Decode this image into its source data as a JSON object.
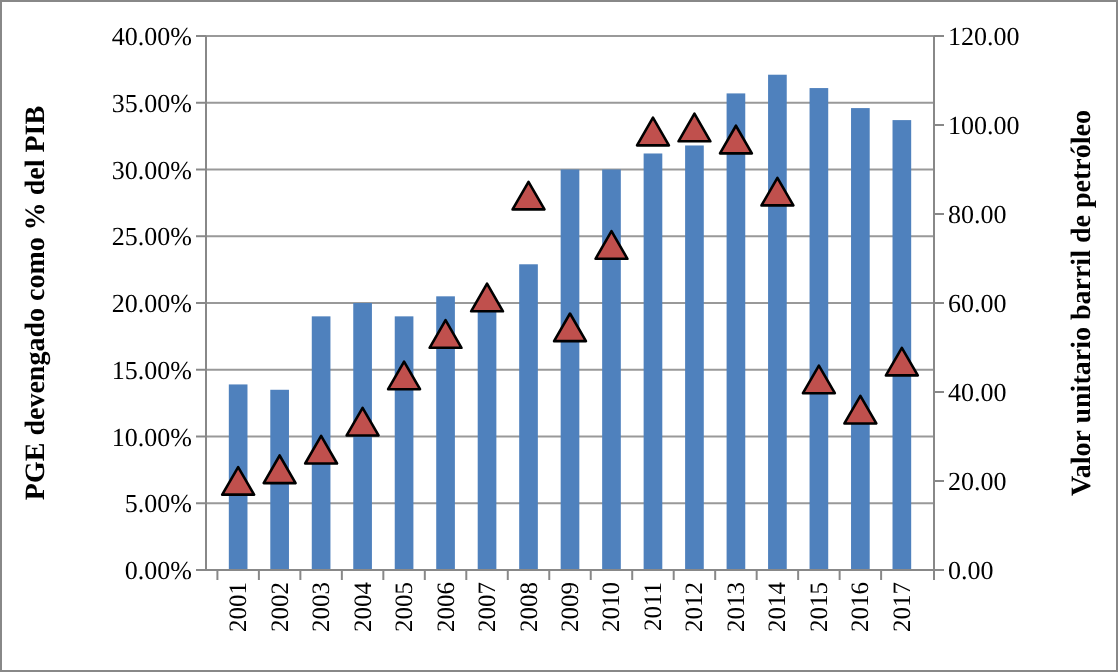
{
  "chart_data": {
    "type": "bar",
    "ylabel": "PGE devengado como % del PIB",
    "y2label": "Valor unitario barril de petróleo",
    "categories": [
      "2001",
      "2002",
      "2003",
      "2004",
      "2005",
      "2006",
      "2007",
      "2008",
      "2009",
      "2010",
      "2011",
      "2012",
      "2013",
      "2014",
      "2015",
      "2016",
      "2017"
    ],
    "series": [
      {
        "color": "#4f81bd",
        "values": [
          13.9,
          13.5,
          19.0,
          20.0,
          19.0,
          20.5,
          19.5,
          22.9,
          30.0,
          30.0,
          31.2,
          31.8,
          35.7,
          37.1,
          36.1,
          34.6,
          33.7
        ]
      },
      {
        "type": "scatter",
        "axis": "y2",
        "color": "#c0504d",
        "marker": "triangle",
        "values": [
          19,
          21.6,
          26,
          32.3,
          42.7,
          52,
          60.2,
          83.1,
          53.5,
          72,
          97.5,
          98.4,
          95.7,
          84,
          41.8,
          35,
          45.8
        ]
      }
    ],
    "ylim": [
      0,
      40
    ],
    "yticks": [
      {
        "value": 0,
        "label": "0.00%"
      },
      {
        "value": 5,
        "label": "5.00%"
      },
      {
        "value": 10,
        "label": "10.00%"
      },
      {
        "value": 15,
        "label": "15.00%"
      },
      {
        "value": 20,
        "label": "20.00%"
      },
      {
        "value": 25,
        "label": "25.00%"
      },
      {
        "value": 30,
        "label": "30.00%"
      },
      {
        "value": 35,
        "label": "35.00%"
      },
      {
        "value": 40,
        "label": "40.00%"
      }
    ],
    "y2lim": [
      0,
      120
    ],
    "y2ticks": [
      {
        "value": 0,
        "label": "0.00"
      },
      {
        "value": 20,
        "label": "20.00"
      },
      {
        "value": 40,
        "label": "40.00"
      },
      {
        "value": 60,
        "label": "60.00"
      },
      {
        "value": 80,
        "label": "80.00"
      },
      {
        "value": 100,
        "label": "100.00"
      },
      {
        "value": 120,
        "label": "120.00"
      }
    ],
    "grid": "y"
  }
}
